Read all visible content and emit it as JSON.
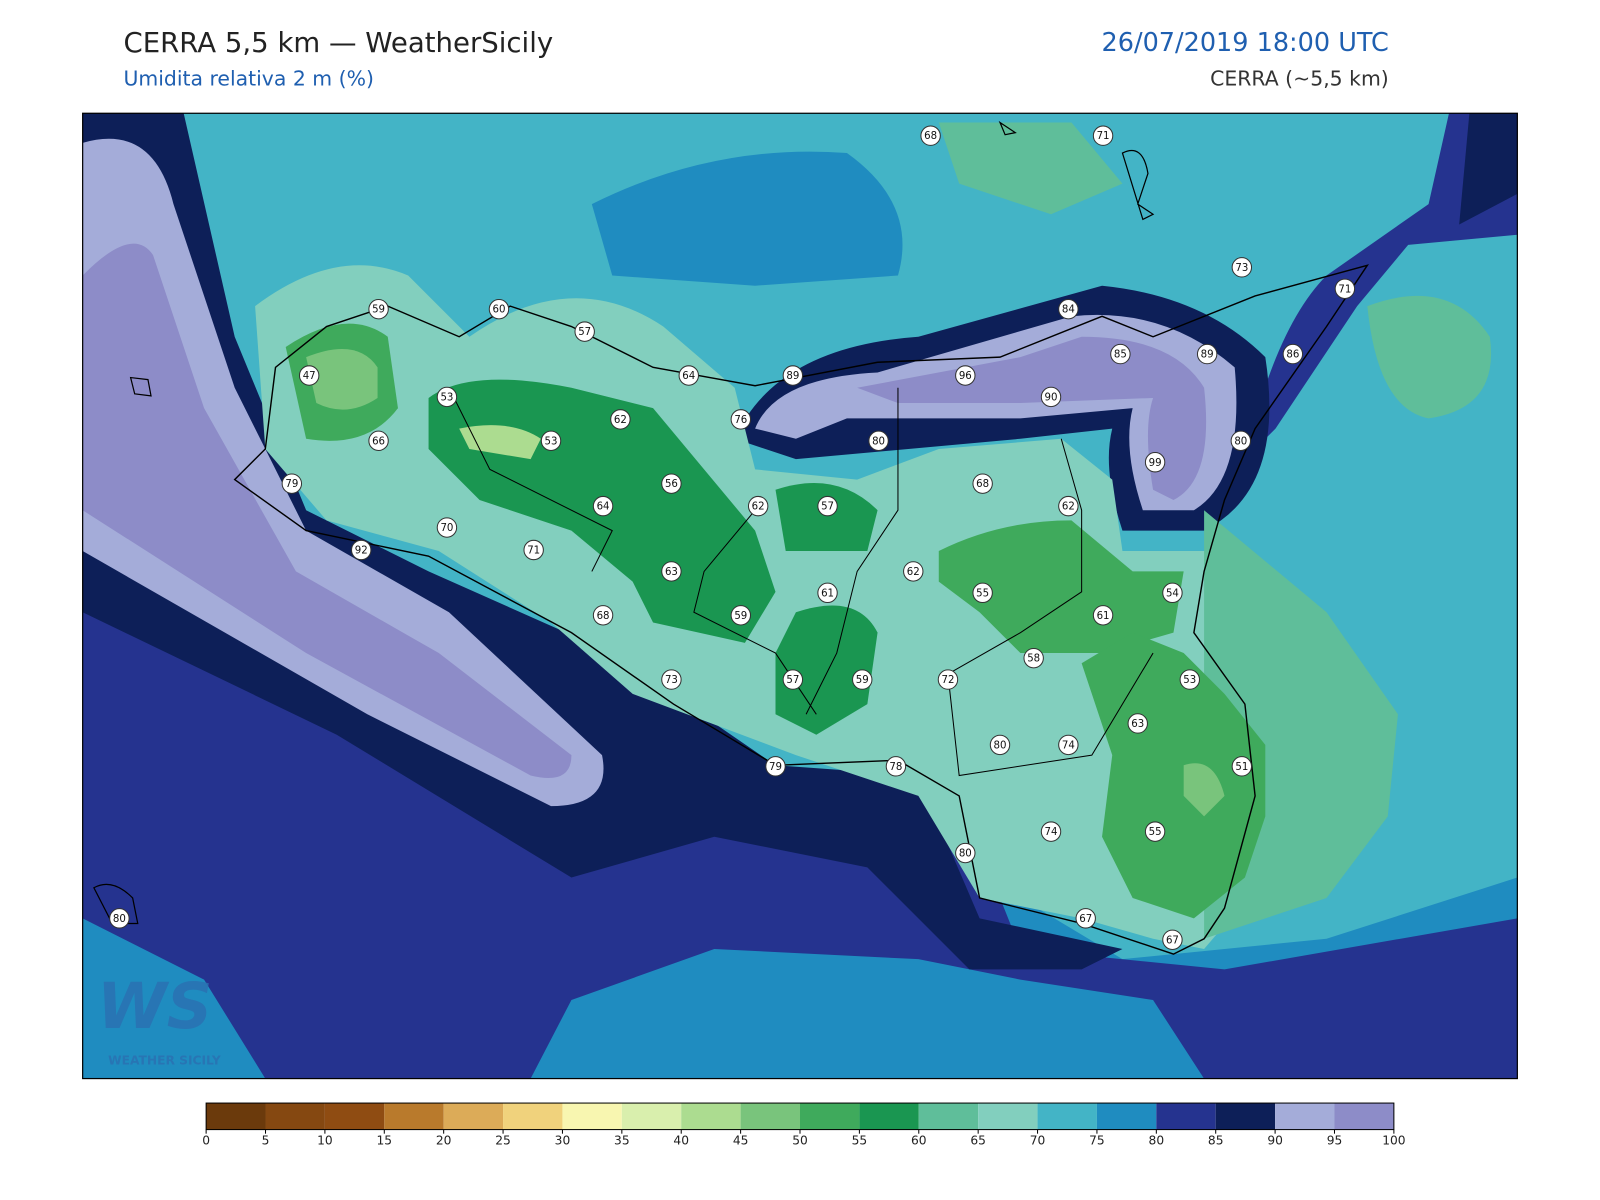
{
  "header": {
    "title": "CERRA 5,5 km — WeatherSicily",
    "subtitle": "Umidita relativa 2 m (%)",
    "datetime": "26/07/2019 18:00 UTC",
    "model": "CERRA (~5,5 km)"
  },
  "logo": {
    "text": "WS",
    "caption": "WEATHER SICILY"
  },
  "stations": [
    68,
    71,
    73,
    71,
    59,
    60,
    57,
    84,
    85,
    89,
    86,
    47,
    53,
    64,
    89,
    96,
    90,
    62,
    76,
    53,
    66,
    80,
    80,
    99,
    79,
    56,
    68,
    64,
    62,
    57,
    62,
    70,
    92,
    71,
    63,
    62,
    61,
    55,
    54,
    68,
    59,
    61,
    58,
    73,
    57,
    59,
    72,
    53,
    63,
    80,
    74,
    51,
    79,
    78,
    74,
    55,
    80,
    80,
    67,
    67
  ],
  "colorbar": {
    "ticks": [
      0,
      5,
      10,
      15,
      20,
      25,
      30,
      35,
      40,
      45,
      50,
      55,
      60,
      65,
      70,
      75,
      80,
      85,
      90,
      95,
      100
    ],
    "colors": [
      "#6b3a0c",
      "#854811",
      "#8f4c12",
      "#b97a2c",
      "#dcab58",
      "#f0d27c",
      "#f8f6b0",
      "#d9efad",
      "#acdc90",
      "#79c47c",
      "#3faa5c",
      "#1a9651",
      "#5fbe9a",
      "#82cfbe",
      "#43b4c6",
      "#1f8cc0",
      "#25338f",
      "#0d1f58",
      "#a4acd9",
      "#8d8cc8"
    ]
  }
}
